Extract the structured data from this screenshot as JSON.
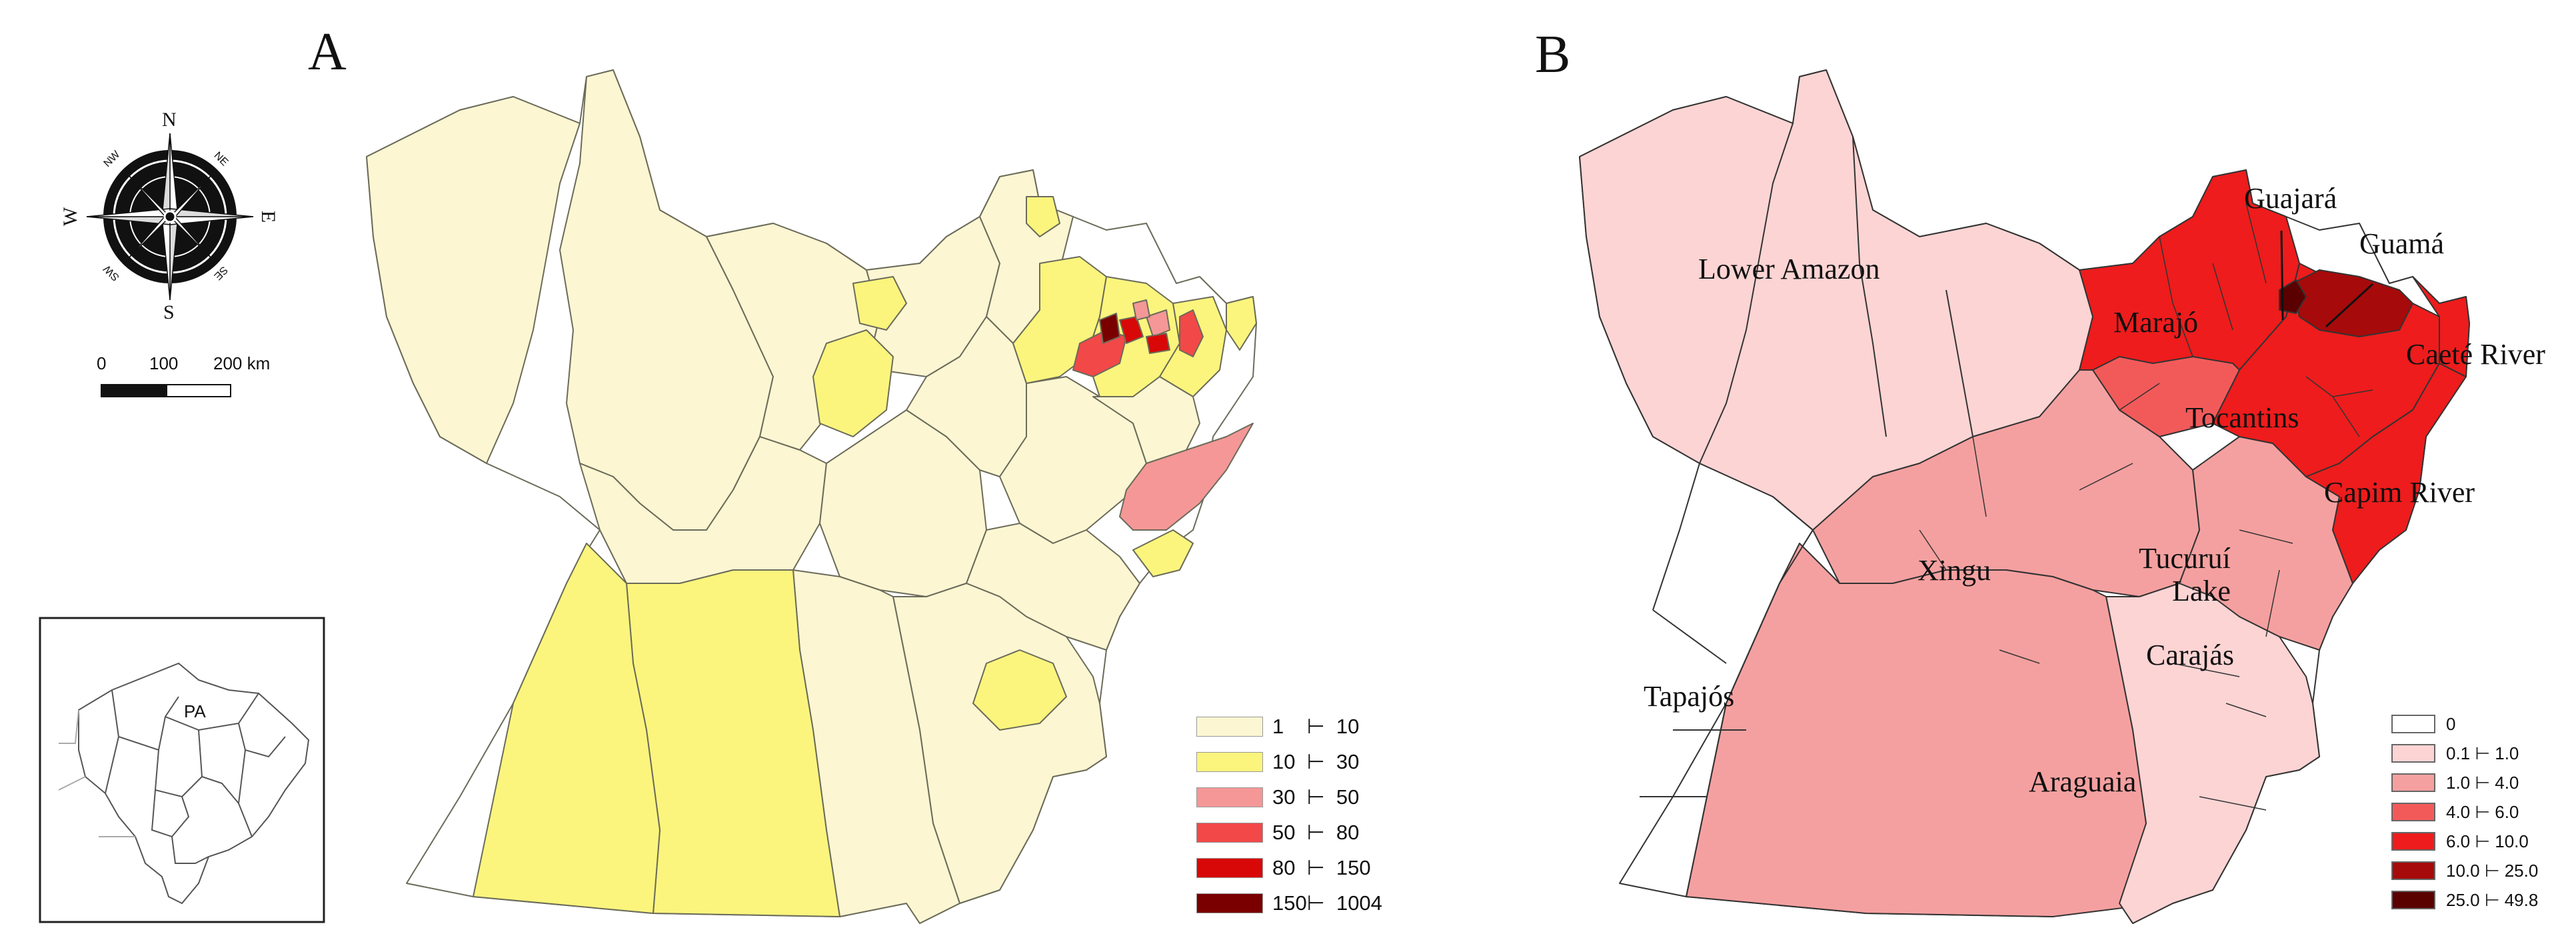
{
  "panels": {
    "a": {
      "letter": "A"
    },
    "b": {
      "letter": "B"
    }
  },
  "compass": {
    "n": "N",
    "s": "S",
    "e": "E",
    "w": "W",
    "ne": "NE",
    "nw": "NW",
    "se": "SE",
    "sw": "SW"
  },
  "scalebar": {
    "t0": "0",
    "t1": "100",
    "t2": "200 km"
  },
  "inset": {
    "label": "PA"
  },
  "legend_a": [
    {
      "label": "1    ⊢  10",
      "color": "#fdf6d2"
    },
    {
      "label": "10  ⊢  30",
      "color": "#fbf57d"
    },
    {
      "label": "30  ⊢  50",
      "color": "#f59797"
    },
    {
      "label": "50  ⊢  80",
      "color": "#f24848"
    },
    {
      "label": "80  ⊢  150",
      "color": "#d80808"
    },
    {
      "label": "150⊢  1004",
      "color": "#7a0000"
    }
  ],
  "legend_b": [
    {
      "label": "0",
      "color": "#ffffff"
    },
    {
      "label": "0.1 ⊢ 1.0",
      "color": "#fdd4d4"
    },
    {
      "label": "1.0 ⊢ 4.0",
      "color": "#f5a0a0"
    },
    {
      "label": "4.0 ⊢ 6.0",
      "color": "#f25a5a"
    },
    {
      "label": "6.0 ⊢ 10.0",
      "color": "#ee1c1c"
    },
    {
      "label": "10.0 ⊢ 25.0",
      "color": "#a70a0a"
    },
    {
      "label": "25.0 ⊢ 49.8",
      "color": "#5a0000"
    }
  ],
  "regions_b": {
    "lower_amazon": "Lower Amazon",
    "guajara": "Guajará",
    "guama": "Guamá",
    "marajo": "Marajó",
    "caete": "Caeté River",
    "tocantins": "Tocantins",
    "capim": "Capim River",
    "xingu": "Xingu",
    "tucurui_1": "Tucuruí",
    "tucurui_2": "Lake",
    "carajas": "Carajás",
    "tapajos": "Tapajós",
    "araguaia": "Araguaia"
  }
}
